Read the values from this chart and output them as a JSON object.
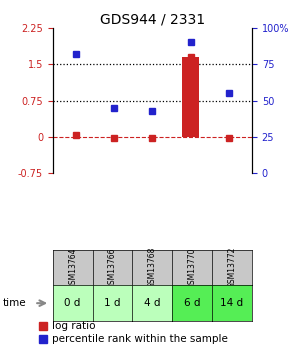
{
  "title": "GDS944 / 2331",
  "samples": [
    "GSM13764",
    "GSM13766",
    "GSM13768",
    "GSM13770",
    "GSM13772"
  ],
  "time_labels": [
    "0 d",
    "1 d",
    "4 d",
    "6 d",
    "14 d"
  ],
  "log_ratio": [
    0.05,
    -0.02,
    -0.02,
    1.65,
    -0.02
  ],
  "percentile_rank": [
    82,
    45,
    43,
    90,
    55
  ],
  "bar_color": "#cc2222",
  "dot_color_log": "#cc2222",
  "dot_color_pct": "#2222cc",
  "left_ylim": [
    -0.75,
    2.25
  ],
  "right_ylim": [
    0,
    100
  ],
  "left_yticks": [
    -0.75,
    0,
    0.75,
    1.5,
    2.25
  ],
  "right_yticks": [
    0,
    25,
    50,
    75,
    100
  ],
  "dotted_values": [
    0.75,
    1.5
  ],
  "sample_bg": "#c8c8c8",
  "time_bg_colors": [
    "#bbffbb",
    "#bbffbb",
    "#bbffbb",
    "#55ee55",
    "#55ee55"
  ],
  "title_fontsize": 10,
  "tick_fontsize": 7,
  "legend_fontsize": 7.5
}
